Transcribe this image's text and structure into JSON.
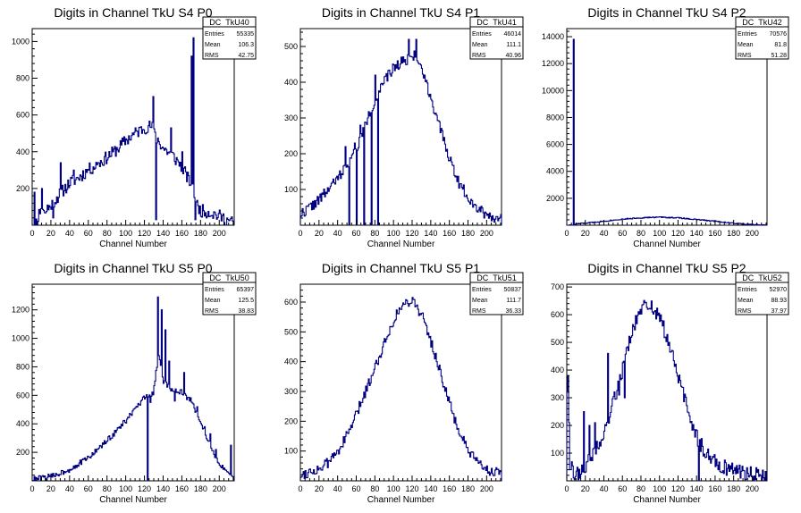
{
  "chart_data": [
    {
      "type": "histogram",
      "title": "Digits in Channel TkU S4 P0",
      "xlabel": "Channel Number",
      "ylabel": "",
      "xlim": [
        0,
        216
      ],
      "ylim": [
        0,
        1070
      ],
      "xticks": [
        0,
        20,
        40,
        60,
        80,
        100,
        120,
        140,
        160,
        180,
        200
      ],
      "yticks": [
        200,
        400,
        600,
        800,
        1000
      ],
      "stats": {
        "name": "DC_TkU40",
        "rows": [
          {
            "label": "Entries",
            "value": "55335"
          },
          {
            "label": "Mean",
            "value": "106.3"
          },
          {
            "label": "RMS",
            "value": "42.75"
          }
        ]
      },
      "profile": [
        [
          0,
          10
        ],
        [
          5,
          20
        ],
        [
          10,
          120
        ],
        [
          15,
          60
        ],
        [
          20,
          110
        ],
        [
          30,
          170
        ],
        [
          40,
          230
        ],
        [
          50,
          260
        ],
        [
          60,
          300
        ],
        [
          70,
          330
        ],
        [
          80,
          370
        ],
        [
          90,
          410
        ],
        [
          100,
          460
        ],
        [
          110,
          500
        ],
        [
          120,
          530
        ],
        [
          128,
          540
        ],
        [
          130,
          500
        ],
        [
          135,
          460
        ],
        [
          140,
          420
        ],
        [
          150,
          380
        ],
        [
          160,
          320
        ],
        [
          170,
          220
        ],
        [
          175,
          120
        ],
        [
          180,
          80
        ],
        [
          190,
          70
        ],
        [
          200,
          50
        ],
        [
          210,
          25
        ],
        [
          216,
          10
        ]
      ],
      "noise": 35,
      "spikes": [
        [
          2,
          180
        ],
        [
          5,
          0
        ],
        [
          10,
          200
        ],
        [
          16,
          110
        ],
        [
          22,
          40
        ],
        [
          30,
          340
        ],
        [
          44,
          300
        ],
        [
          60,
          300
        ],
        [
          70,
          340
        ],
        [
          100,
          470
        ],
        [
          129,
          700
        ],
        [
          132,
          30
        ],
        [
          148,
          530
        ],
        [
          160,
          400
        ],
        [
          164,
          290
        ],
        [
          170,
          920
        ],
        [
          172,
          1020
        ],
        [
          174,
          30
        ]
      ],
      "seed": 11
    },
    {
      "type": "histogram",
      "title": "Digits in Channel TkU S4 P1",
      "xlabel": "Channel Number",
      "ylabel": "",
      "xlim": [
        0,
        216
      ],
      "ylim": [
        0,
        550
      ],
      "xticks": [
        0,
        20,
        40,
        60,
        80,
        100,
        120,
        140,
        160,
        180,
        200
      ],
      "yticks": [
        100,
        200,
        300,
        400,
        500
      ],
      "stats": {
        "name": "DC_TkU41",
        "rows": [
          {
            "label": "Entries",
            "value": "46014"
          },
          {
            "label": "Mean",
            "value": "111.1"
          },
          {
            "label": "RMS",
            "value": "40.96"
          }
        ]
      },
      "profile": [
        [
          0,
          30
        ],
        [
          10,
          50
        ],
        [
          20,
          70
        ],
        [
          30,
          100
        ],
        [
          40,
          130
        ],
        [
          50,
          170
        ],
        [
          60,
          210
        ],
        [
          70,
          280
        ],
        [
          80,
          350
        ],
        [
          90,
          400
        ],
        [
          100,
          440
        ],
        [
          110,
          460
        ],
        [
          120,
          470
        ],
        [
          125,
          475
        ],
        [
          130,
          440
        ],
        [
          140,
          360
        ],
        [
          150,
          270
        ],
        [
          160,
          190
        ],
        [
          170,
          120
        ],
        [
          180,
          80
        ],
        [
          190,
          50
        ],
        [
          200,
          30
        ],
        [
          216,
          15
        ]
      ],
      "noise": 15,
      "spikes": [
        [
          48,
          220
        ],
        [
          52,
          0
        ],
        [
          58,
          230
        ],
        [
          60,
          0
        ],
        [
          64,
          280
        ],
        [
          68,
          0
        ],
        [
          72,
          300
        ],
        [
          76,
          0
        ],
        [
          80,
          420
        ],
        [
          83,
          0
        ],
        [
          116,
          520
        ],
        [
          124,
          520
        ]
      ],
      "seed": 22
    },
    {
      "type": "histogram",
      "title": "Digits in Channel TkU S4 P2",
      "xlabel": "Channel Number",
      "ylabel": "",
      "xlim": [
        0,
        216
      ],
      "ylim": [
        0,
        14600
      ],
      "xticks": [
        0,
        20,
        40,
        60,
        80,
        100,
        120,
        140,
        160,
        180,
        200
      ],
      "yticks": [
        2000,
        4000,
        6000,
        8000,
        10000,
        12000,
        14000
      ],
      "stats": {
        "name": "DC_TkU42",
        "rows": [
          {
            "label": "Entries",
            "value": "70576"
          },
          {
            "label": "Mean",
            "value": "81.8"
          },
          {
            "label": "RMS",
            "value": "51.28"
          }
        ]
      },
      "profile": [
        [
          0,
          0
        ],
        [
          8,
          0
        ],
        [
          10,
          100
        ],
        [
          20,
          150
        ],
        [
          40,
          300
        ],
        [
          60,
          450
        ],
        [
          80,
          550
        ],
        [
          100,
          600
        ],
        [
          120,
          550
        ],
        [
          140,
          420
        ],
        [
          160,
          300
        ],
        [
          180,
          150
        ],
        [
          195,
          50
        ],
        [
          216,
          0
        ]
      ],
      "noise": 40,
      "spikes": [
        [
          7,
          13800
        ]
      ],
      "seed": 33
    },
    {
      "type": "histogram",
      "title": "Digits in Channel TkU S5 P0",
      "xlabel": "Channel Number",
      "ylabel": "",
      "xlim": [
        0,
        216
      ],
      "ylim": [
        0,
        1380
      ],
      "xticks": [
        0,
        20,
        40,
        60,
        80,
        100,
        120,
        140,
        160,
        180,
        200
      ],
      "yticks": [
        200,
        400,
        600,
        800,
        1000,
        1200
      ],
      "stats": {
        "name": "DC_TkU50",
        "rows": [
          {
            "label": "Entries",
            "value": "65397"
          },
          {
            "label": "Mean",
            "value": "125.5"
          },
          {
            "label": "RMS",
            "value": "38.83"
          }
        ]
      },
      "profile": [
        [
          0,
          10
        ],
        [
          20,
          30
        ],
        [
          40,
          80
        ],
        [
          60,
          160
        ],
        [
          80,
          280
        ],
        [
          100,
          420
        ],
        [
          110,
          500
        ],
        [
          120,
          580
        ],
        [
          125,
          600
        ],
        [
          130,
          620
        ],
        [
          135,
          900
        ],
        [
          140,
          700
        ],
        [
          150,
          640
        ],
        [
          160,
          620
        ],
        [
          170,
          560
        ],
        [
          180,
          420
        ],
        [
          190,
          250
        ],
        [
          200,
          120
        ],
        [
          210,
          40
        ],
        [
          216,
          10
        ]
      ],
      "noise": 20,
      "spikes": [
        [
          123,
          0
        ],
        [
          126,
          550
        ],
        [
          134,
          1290
        ],
        [
          138,
          1200
        ],
        [
          142,
          1060
        ],
        [
          146,
          840
        ],
        [
          152,
          560
        ],
        [
          162,
          760
        ],
        [
          168,
          560
        ],
        [
          176,
          520
        ],
        [
          184,
          380
        ],
        [
          190,
          330
        ],
        [
          196,
          220
        ],
        [
          204,
          80
        ],
        [
          212,
          250
        ]
      ],
      "seed": 44
    },
    {
      "type": "histogram",
      "title": "Digits in Channel TkU S5 P1",
      "xlabel": "Channel Number",
      "ylabel": "",
      "xlim": [
        0,
        216
      ],
      "ylim": [
        0,
        660
      ],
      "xticks": [
        0,
        20,
        40,
        60,
        80,
        100,
        120,
        140,
        160,
        180,
        200
      ],
      "yticks": [
        100,
        200,
        300,
        400,
        500,
        600
      ],
      "stats": {
        "name": "DC_TkU51",
        "rows": [
          {
            "label": "Entries",
            "value": "50837"
          },
          {
            "label": "Mean",
            "value": "111.7"
          },
          {
            "label": "RMS",
            "value": "36.33"
          }
        ]
      },
      "profile": [
        [
          0,
          20
        ],
        [
          10,
          30
        ],
        [
          20,
          40
        ],
        [
          30,
          60
        ],
        [
          40,
          100
        ],
        [
          50,
          150
        ],
        [
          60,
          220
        ],
        [
          70,
          300
        ],
        [
          80,
          380
        ],
        [
          90,
          460
        ],
        [
          100,
          540
        ],
        [
          110,
          590
        ],
        [
          120,
          610
        ],
        [
          130,
          560
        ],
        [
          140,
          470
        ],
        [
          150,
          370
        ],
        [
          160,
          260
        ],
        [
          170,
          170
        ],
        [
          180,
          100
        ],
        [
          190,
          60
        ],
        [
          200,
          40
        ],
        [
          216,
          20
        ]
      ],
      "noise": 18,
      "spikes": [],
      "seed": 55
    },
    {
      "type": "histogram",
      "title": "Digits in Channel TkU S5 P2",
      "xlabel": "Channel Number",
      "ylabel": "",
      "xlim": [
        0,
        216
      ],
      "ylim": [
        0,
        710
      ],
      "xticks": [
        0,
        20,
        40,
        60,
        80,
        100,
        120,
        140,
        160,
        180,
        200
      ],
      "yticks": [
        100,
        200,
        300,
        400,
        500,
        600,
        700
      ],
      "stats": {
        "name": "DC_TkU52",
        "rows": [
          {
            "label": "Entries",
            "value": "52970"
          },
          {
            "label": "Mean",
            "value": "88.93"
          },
          {
            "label": "RMS",
            "value": "37.97"
          }
        ]
      },
      "profile": [
        [
          0,
          350
        ],
        [
          2,
          300
        ],
        [
          4,
          50
        ],
        [
          10,
          20
        ],
        [
          20,
          50
        ],
        [
          30,
          100
        ],
        [
          40,
          170
        ],
        [
          50,
          280
        ],
        [
          60,
          400
        ],
        [
          70,
          530
        ],
        [
          80,
          620
        ],
        [
          90,
          640
        ],
        [
          100,
          590
        ],
        [
          110,
          500
        ],
        [
          120,
          380
        ],
        [
          130,
          260
        ],
        [
          140,
          160
        ],
        [
          150,
          100
        ],
        [
          160,
          70
        ],
        [
          170,
          50
        ],
        [
          180,
          40
        ],
        [
          190,
          30
        ],
        [
          200,
          30
        ],
        [
          216,
          10
        ]
      ],
      "noise": 28,
      "spikes": [
        [
          1,
          380
        ],
        [
          3,
          40
        ],
        [
          18,
          250
        ],
        [
          24,
          200
        ],
        [
          30,
          210
        ],
        [
          44,
          460
        ],
        [
          48,
          270
        ],
        [
          56,
          310
        ],
        [
          62,
          300
        ],
        [
          142,
          0
        ]
      ],
      "seed": 66
    }
  ]
}
